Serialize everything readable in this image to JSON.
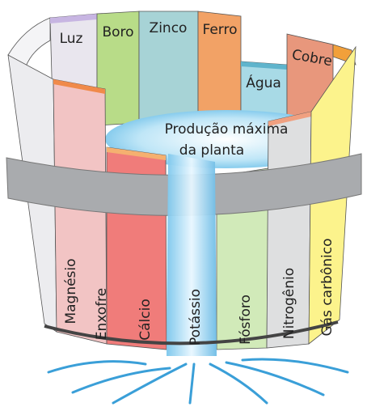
{
  "center_label": [
    "Produção máxima",
    "da planta"
  ],
  "back_staves": [
    "Luz",
    "Boro",
    "Zinco",
    "Ferro",
    "Água",
    "Cobre"
  ],
  "front_staves": [
    "Magnésio",
    "Enxofre",
    "Cálcio",
    "Potássio",
    "Fósforo",
    "Nitrogênio",
    "Gás carbônico"
  ]
}
